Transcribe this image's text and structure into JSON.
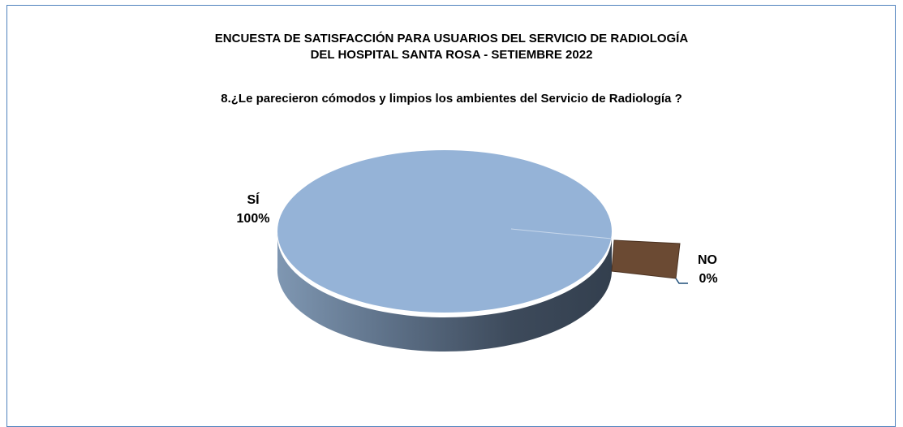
{
  "title_line1": "ENCUESTA DE SATISFACCIÓN PARA USUARIOS DEL SERVICIO DE RADIOLOGÍA",
  "title_line2": "DEL HOSPITAL SANTA ROSA - SETIEMBRE 2022",
  "chart_data": {
    "type": "pie",
    "title": "8.¿Le parecieron cómodos y limpios los ambientes del Servicio de Radiología ?",
    "categories": [
      "SÍ",
      "NO"
    ],
    "values": [
      100,
      0
    ],
    "data_labels": [
      {
        "category": "SÍ",
        "value": "100%"
      },
      {
        "category": "NO",
        "value": "0%"
      }
    ],
    "three_d": true,
    "legend": "none",
    "colors": {
      "SÍ": "#95b3d7",
      "NO": "#6b4a33",
      "frame": "#4f81bd"
    }
  }
}
